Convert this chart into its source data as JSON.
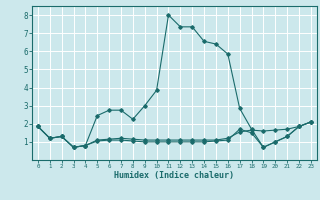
{
  "xlabel": "Humidex (Indice chaleur)",
  "ylabel": "",
  "xlim": [
    -0.5,
    23.5
  ],
  "ylim": [
    0,
    8.5
  ],
  "xticks": [
    0,
    1,
    2,
    3,
    4,
    5,
    6,
    7,
    8,
    9,
    10,
    11,
    12,
    13,
    14,
    15,
    16,
    17,
    18,
    19,
    20,
    21,
    22,
    23
  ],
  "yticks": [
    1,
    2,
    3,
    4,
    5,
    6,
    7,
    8
  ],
  "bg_color": "#cce8ec",
  "grid_color": "#ffffff",
  "line_color": "#1a6b6b",
  "lines": [
    {
      "x": [
        0,
        1,
        2,
        3,
        4,
        5,
        6,
        7,
        8,
        9,
        10,
        11,
        12,
        13,
        14,
        15,
        16,
        17,
        18,
        19,
        20,
        21,
        22,
        23
      ],
      "y": [
        1.85,
        1.2,
        1.3,
        0.7,
        0.8,
        2.45,
        2.75,
        2.75,
        2.25,
        3.0,
        3.85,
        8.0,
        7.35,
        7.35,
        6.55,
        6.4,
        5.85,
        2.85,
        1.7,
        0.7,
        1.0,
        1.3,
        1.85,
        2.1
      ]
    },
    {
      "x": [
        0,
        1,
        2,
        3,
        4,
        5,
        6,
        7,
        8,
        9,
        10,
        11,
        12,
        13,
        14,
        15,
        16,
        17,
        18,
        19,
        20,
        21,
        22,
        23
      ],
      "y": [
        1.85,
        1.2,
        1.3,
        0.7,
        0.8,
        1.1,
        1.15,
        1.2,
        1.15,
        1.1,
        1.1,
        1.1,
        1.1,
        1.1,
        1.1,
        1.1,
        1.2,
        1.55,
        1.65,
        1.6,
        1.65,
        1.7,
        1.85,
        2.1
      ]
    },
    {
      "x": [
        0,
        1,
        2,
        3,
        4,
        5,
        6,
        7,
        8,
        9,
        10,
        11,
        12,
        13,
        14,
        15,
        16,
        17,
        18,
        19,
        20,
        21,
        22,
        23
      ],
      "y": [
        1.85,
        1.2,
        1.3,
        0.7,
        0.8,
        1.05,
        1.1,
        1.1,
        1.05,
        1.0,
        1.0,
        1.0,
        1.0,
        1.0,
        1.0,
        1.05,
        1.1,
        1.7,
        1.5,
        0.7,
        1.0,
        1.3,
        1.85,
        2.1
      ]
    }
  ]
}
